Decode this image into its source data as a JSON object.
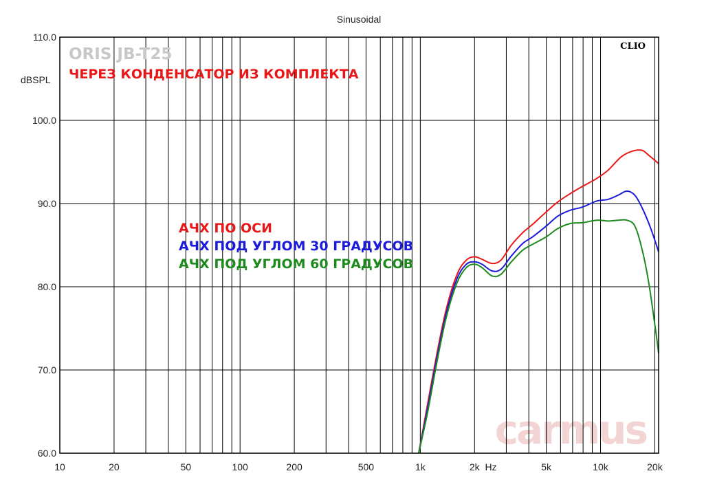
{
  "chart_data": {
    "type": "line",
    "title": "Sinusoidal",
    "xlabel": "Hz",
    "ylabel": "dBSPL",
    "x_scale": "log",
    "xlim": [
      10,
      21000
    ],
    "ylim": [
      60,
      110
    ],
    "grid": true,
    "x_ticks": [
      10,
      20,
      50,
      100,
      200,
      500,
      1000,
      2000,
      5000,
      10000,
      20000
    ],
    "x_tick_labels": [
      "10",
      "20",
      "50",
      "100",
      "200",
      "500",
      "1k",
      "2k",
      "5k",
      "10k",
      "20k"
    ],
    "y_ticks": [
      60,
      70,
      80,
      90,
      100,
      110
    ],
    "y_tick_labels": [
      "60.0",
      "70.0",
      "80.0",
      "90.0",
      "100.0",
      "110.0"
    ],
    "brand_label": "CLIO",
    "watermark": "carmus",
    "annotations": {
      "model": "ORIS JB-T25",
      "condition": "ЧЕРЕЗ КОНДЕНСАТОР ИЗ КОМПЛЕКТА"
    },
    "series": [
      {
        "name": "АЧХ ПО ОСИ",
        "color": "#e81818",
        "x": [
          980,
          1100,
          1250,
          1400,
          1600,
          1800,
          2000,
          2200,
          2500,
          2800,
          3200,
          3700,
          4200,
          5000,
          5800,
          6800,
          8000,
          9500,
          11000,
          13000,
          15000,
          17000,
          18500,
          20000,
          21000
        ],
        "y": [
          60,
          66,
          72.5,
          77.5,
          81.5,
          83.2,
          83.6,
          83.3,
          82.8,
          83.2,
          85,
          86.5,
          87.5,
          89,
          90.2,
          91.2,
          92.1,
          93,
          94,
          95.6,
          96.3,
          96.4,
          95.8,
          95.2,
          94.8
        ]
      },
      {
        "name": "АЧХ ПОД УГЛОМ 30 ГРАДУСОВ",
        "color": "#1a1ad8",
        "x": [
          980,
          1100,
          1250,
          1400,
          1600,
          1800,
          2000,
          2200,
          2500,
          2800,
          3200,
          3700,
          4200,
          5000,
          5800,
          6800,
          8000,
          9500,
          11000,
          12500,
          14000,
          15500,
          17000,
          19000,
          21000
        ],
        "y": [
          60,
          65.5,
          72,
          77,
          81,
          82.7,
          83,
          82.7,
          81.9,
          82.1,
          83.7,
          85.2,
          86,
          87.3,
          88.5,
          89.2,
          89.6,
          90.3,
          90.5,
          91,
          91.5,
          91,
          89.5,
          87,
          84.2
        ]
      },
      {
        "name": "АЧХ ПОД УГЛОМ 60 ГРАДУСОВ",
        "color": "#1e8a1e",
        "x": [
          980,
          1100,
          1250,
          1400,
          1600,
          1800,
          2000,
          2200,
          2500,
          2800,
          3200,
          3700,
          4200,
          5000,
          5800,
          6800,
          8000,
          9500,
          11000,
          12500,
          14000,
          15500,
          17000,
          18500,
          20000,
          21000
        ],
        "y": [
          60,
          65,
          71.5,
          76.5,
          80.5,
          82.3,
          82.7,
          82.3,
          81.3,
          81.5,
          83,
          84.4,
          85.1,
          86,
          87,
          87.6,
          87.7,
          88,
          87.9,
          88,
          88,
          87.3,
          84.5,
          80.5,
          75.5,
          72
        ]
      }
    ]
  }
}
